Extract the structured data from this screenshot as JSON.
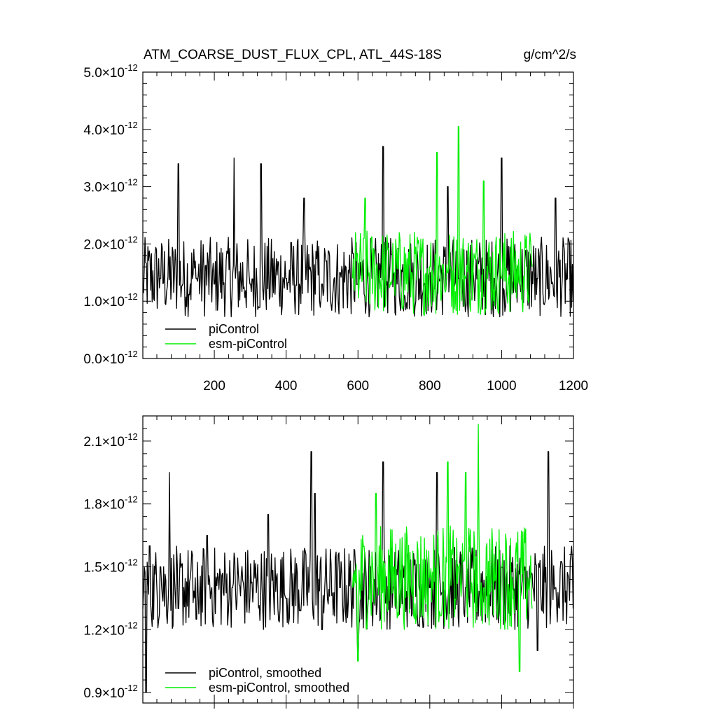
{
  "chart_data": [
    {
      "type": "line",
      "title": "ATM_COARSE_DUST_FLUX_CPL, ATL_44S-18S",
      "units": "g/cm^2/s",
      "xlim": [
        1,
        1200
      ],
      "ylim": [
        0.0,
        5e-12
      ],
      "xticks": [
        200,
        400,
        600,
        800,
        1000,
        1200
      ],
      "xtick_labels": [
        "200",
        "400",
        "600",
        "800",
        "1000",
        "1200"
      ],
      "yticks": [
        0.0,
        1e-12,
        2e-12,
        3e-12,
        4e-12,
        5e-12
      ],
      "ytick_labels": [
        {
          "mantissa": "0.0",
          "exponent": "-12"
        },
        {
          "mantissa": "1.0",
          "exponent": "-12"
        },
        {
          "mantissa": "2.0",
          "exponent": "-12"
        },
        {
          "mantissa": "3.0",
          "exponent": "-12"
        },
        {
          "mantissa": "4.0",
          "exponent": "-12"
        },
        {
          "mantissa": "5.0",
          "exponent": "-12"
        }
      ],
      "legend_position": "bottom-left",
      "series": [
        {
          "name": "piControl",
          "color": "#000000",
          "x_range": [
            1,
            1200
          ],
          "x": [
            1,
            50,
            100,
            150,
            200,
            255,
            300,
            330,
            400,
            450,
            500,
            550,
            600,
            640,
            670,
            700,
            750,
            800,
            850,
            880,
            920,
            980,
            1000,
            1050,
            1100,
            1150,
            1200
          ],
          "values": [
            1.2e-12,
            1.4e-12,
            3.4e-12,
            1.4e-12,
            1.3e-12,
            3.5e-12,
            1.3e-12,
            3.4e-12,
            1.4e-12,
            2.8e-12,
            1.3e-12,
            1.5e-12,
            1.3e-12,
            1.4e-12,
            3.7e-12,
            1.5e-12,
            1.4e-12,
            1.5e-12,
            3e-12,
            1.4e-12,
            1.5e-12,
            1.4e-12,
            3.5e-12,
            1.3e-12,
            1.4e-12,
            2.8e-12,
            1e-12
          ],
          "mean": 1.42e-12,
          "spread": 7e-13
        },
        {
          "name": "esm-piControl",
          "color": "#00ee00",
          "x_range": [
            585,
            1085
          ],
          "x": [
            585,
            620,
            700,
            750,
            800,
            820,
            850,
            880,
            900,
            950,
            1000,
            1050,
            1085
          ],
          "values": [
            1.4e-12,
            2.8e-12,
            1.5e-12,
            1.5e-12,
            1.6e-12,
            3.6e-12,
            1.5e-12,
            4.05e-12,
            1.4e-12,
            3.1e-12,
            1.4e-12,
            1.3e-12,
            1.6e-12
          ],
          "mean": 1.5e-12,
          "spread": 7.5e-13
        }
      ]
    },
    {
      "type": "line",
      "xlim": [
        1,
        1200
      ],
      "ylim": [
        8.5e-13,
        2.22e-12
      ],
      "xticks": [
        200,
        400,
        600,
        800,
        1000,
        1200
      ],
      "yticks": [
        9e-13,
        1.2e-12,
        1.5e-12,
        1.8e-12,
        2.1e-12
      ],
      "ytick_labels": [
        {
          "mantissa": "0.9",
          "exponent": "-12"
        },
        {
          "mantissa": "1.2",
          "exponent": "-12"
        },
        {
          "mantissa": "1.5",
          "exponent": "-12"
        },
        {
          "mantissa": "1.8",
          "exponent": "-12"
        },
        {
          "mantissa": "2.1",
          "exponent": "-12"
        }
      ],
      "legend_position": "bottom-left",
      "series": [
        {
          "name": "piControl, smoothed",
          "color": "#000000",
          "x_range": [
            1,
            1200
          ],
          "x": [
            1,
            10,
            20,
            50,
            75,
            100,
            150,
            180,
            250,
            350,
            400,
            470,
            480,
            500,
            550,
            600,
            670,
            700,
            800,
            820,
            900,
            1000,
            1100,
            1130,
            1150,
            1200
          ],
          "values": [
            1.3e-12,
            9e-13,
            1.6e-12,
            1.5e-12,
            1.95e-12,
            1.3e-12,
            1.25e-12,
            1.65e-12,
            1.4e-12,
            1.75e-12,
            1.35e-12,
            2.05e-12,
            1.85e-12,
            1.2e-12,
            1.4e-12,
            1.1e-12,
            2e-12,
            1.4e-12,
            1.4e-12,
            1.95e-12,
            1.4e-12,
            1.5e-12,
            1.1e-12,
            2.05e-12,
            1.4e-12,
            1.3e-12
          ],
          "mean": 1.4e-12,
          "spread": 2e-13
        },
        {
          "name": "esm-piControl, smoothed",
          "color": "#00ee00",
          "x_range": [
            585,
            1085
          ],
          "x": [
            585,
            600,
            650,
            700,
            800,
            850,
            880,
            900,
            935,
            950,
            1000,
            1050,
            1085
          ],
          "values": [
            1.4e-12,
            1.05e-12,
            1.85e-12,
            1.5e-12,
            1.45e-12,
            2e-12,
            1.5e-12,
            1.95e-12,
            2.18e-12,
            1.4e-12,
            1.5e-12,
            1e-12,
            1.3e-12
          ],
          "mean": 1.45e-12,
          "spread": 2.5e-13
        }
      ]
    }
  ]
}
